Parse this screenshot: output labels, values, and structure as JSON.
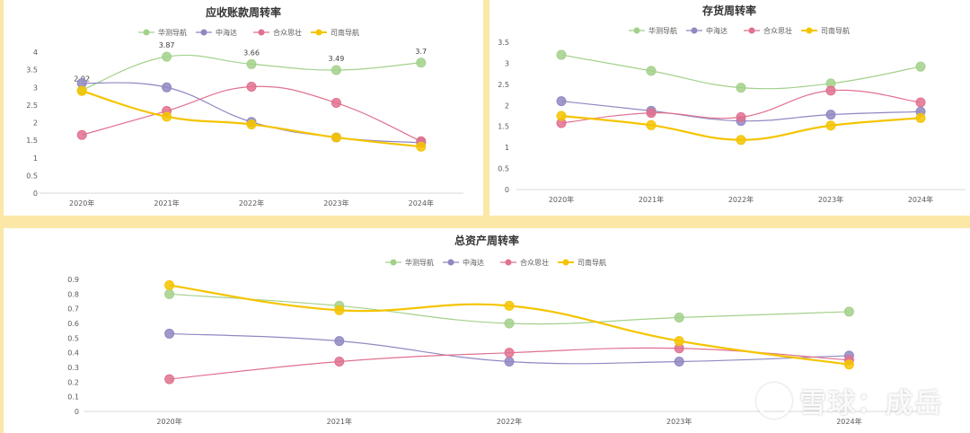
{
  "colors": {
    "series": [
      "#a3d18b",
      "#8f88c2",
      "#e0718f",
      "#f5c400"
    ],
    "axis": "#d9d9d9",
    "text": "#595959"
  },
  "watermark": {
    "text": "雪球：成岳",
    "icon": "snowball-logo-icon"
  },
  "chart_data": [
    {
      "type": "line",
      "title": "应收账款周转率",
      "categories": [
        "2020年",
        "2021年",
        "2022年",
        "2023年",
        "2024年"
      ],
      "ylim": [
        0,
        4
      ],
      "yticks": [
        0,
        0.5,
        1,
        1.5,
        2,
        2.5,
        3,
        3.5,
        4
      ],
      "ytick_labels": [
        "0",
        "0.5",
        "1",
        "1.5",
        "2",
        "2.5",
        "3",
        "3.5",
        "4"
      ],
      "legend_position": "top",
      "series": [
        {
          "name": "华测导航",
          "values": [
            2.92,
            3.87,
            3.66,
            3.49,
            3.7
          ],
          "labels": [
            "2.92",
            "3.87",
            "3.66",
            "3.49",
            "3.7"
          ]
        },
        {
          "name": "中海达",
          "values": [
            3.12,
            3.0,
            2.02,
            1.58,
            1.43
          ]
        },
        {
          "name": "合众思壮",
          "values": [
            1.65,
            2.33,
            3.02,
            2.56,
            1.47
          ]
        },
        {
          "name": "司南导航",
          "values": [
            2.9,
            2.17,
            1.95,
            1.58,
            1.32
          ]
        }
      ]
    },
    {
      "type": "line",
      "title": "存货周转率",
      "categories": [
        "2020年",
        "2021年",
        "2022年",
        "2023年",
        "2024年"
      ],
      "ylim": [
        0,
        3.5
      ],
      "yticks": [
        0,
        0.5,
        1,
        1.5,
        2,
        2.5,
        3,
        3.5
      ],
      "ytick_labels": [
        "0",
        "0.5",
        "1",
        "1.5",
        "2",
        "2.5",
        "3",
        "3.5"
      ],
      "legend_position": "top",
      "series": [
        {
          "name": "华测导航",
          "values": [
            3.2,
            2.82,
            2.42,
            2.52,
            2.92
          ]
        },
        {
          "name": "中海达",
          "values": [
            2.1,
            1.87,
            1.63,
            1.78,
            1.85
          ]
        },
        {
          "name": "合众思壮",
          "values": [
            1.58,
            1.82,
            1.72,
            2.35,
            2.07
          ]
        },
        {
          "name": "司南导航",
          "values": [
            1.75,
            1.53,
            1.18,
            1.52,
            1.7
          ]
        }
      ]
    },
    {
      "type": "line",
      "title": "总资产周转率",
      "categories": [
        "2020年",
        "2021年",
        "2022年",
        "2023年",
        "2024年"
      ],
      "ylim": [
        0,
        0.9
      ],
      "yticks": [
        0,
        0.1,
        0.2,
        0.3,
        0.4,
        0.5,
        0.6,
        0.7,
        0.8,
        0.9
      ],
      "ytick_labels": [
        "0",
        "0.1",
        "0.2",
        "0.3",
        "0.4",
        "0.5",
        "0.6",
        "0.7",
        "0.8",
        "0.9"
      ],
      "legend_position": "top",
      "series": [
        {
          "name": "华测导航",
          "values": [
            0.8,
            0.72,
            0.6,
            0.64,
            0.68
          ]
        },
        {
          "name": "中海达",
          "values": [
            0.53,
            0.48,
            0.34,
            0.34,
            0.38
          ]
        },
        {
          "name": "合众思壮",
          "values": [
            0.22,
            0.34,
            0.4,
            0.43,
            0.35
          ]
        },
        {
          "name": "司南导航",
          "values": [
            0.86,
            0.69,
            0.72,
            0.48,
            0.32
          ]
        }
      ]
    }
  ]
}
